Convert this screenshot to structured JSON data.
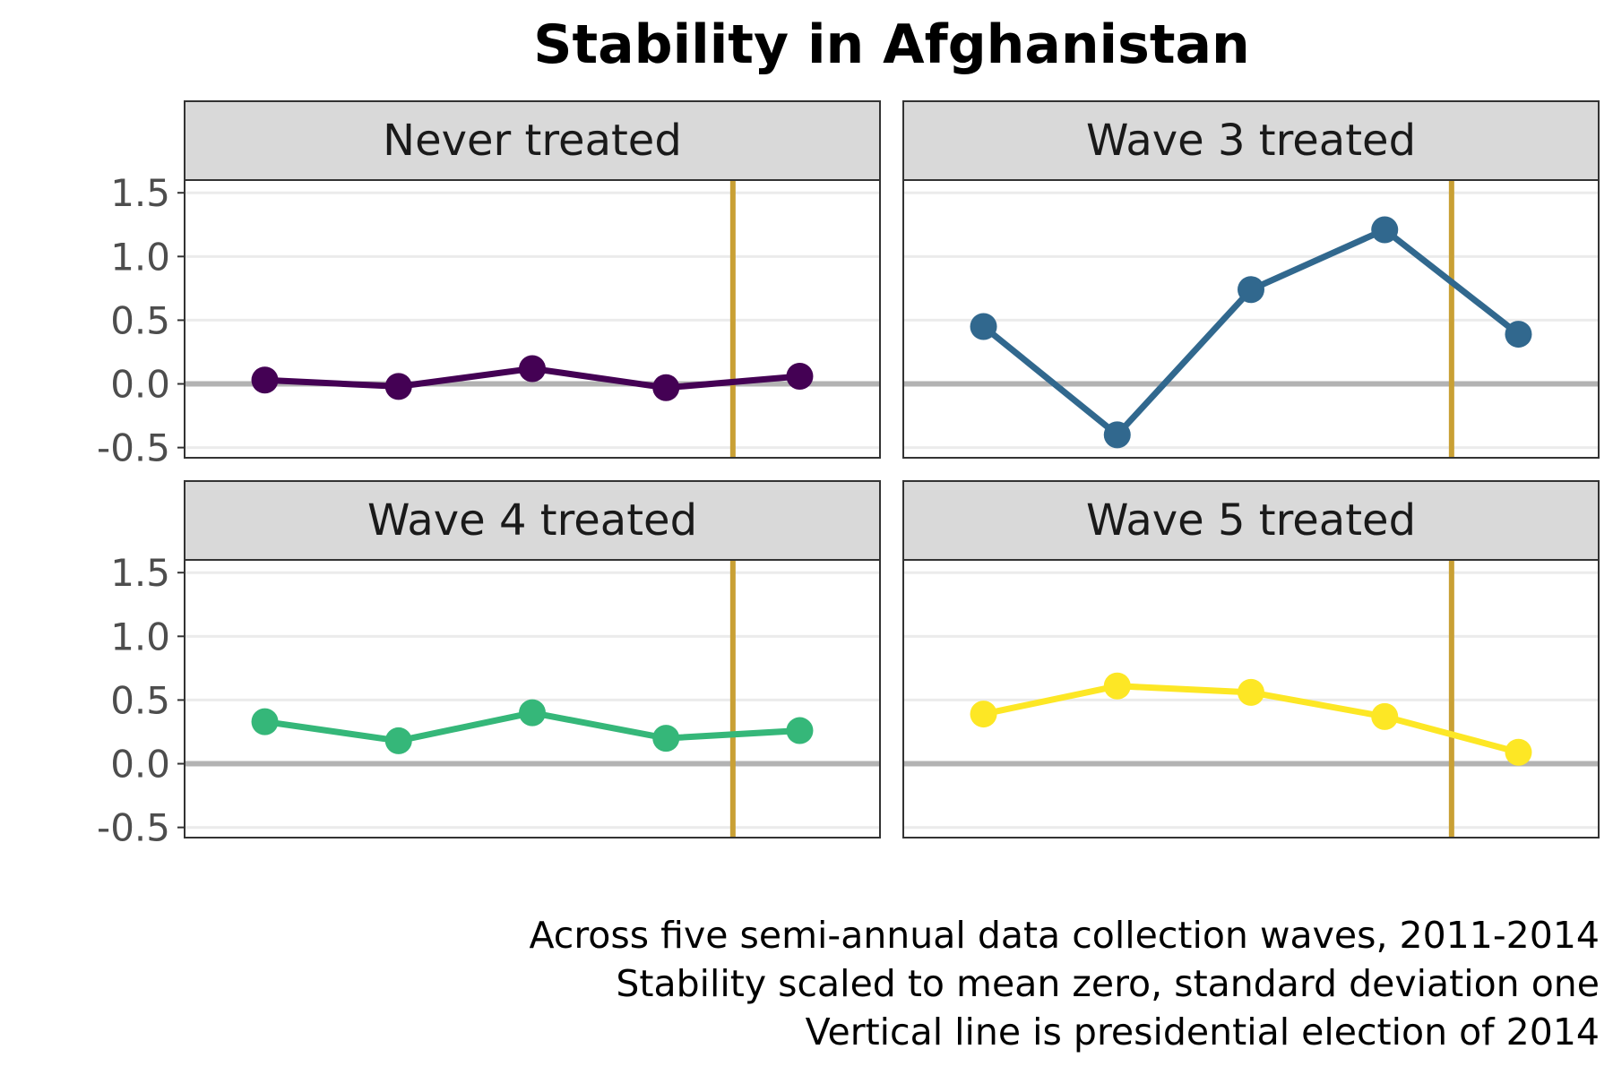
{
  "chart_data": {
    "type": "line",
    "title": "Stability in Afghanistan",
    "caption": [
      "Across five semi-annual data collection waves, 2011-2014",
      "Stability scaled to mean zero, standard deviation one",
      "Vertical line is presidential election of 2014"
    ],
    "x": [
      1,
      2,
      3,
      4,
      5
    ],
    "xlim": [
      0.4,
      5.6
    ],
    "ylim": [
      -0.58,
      1.6
    ],
    "yticks": [
      -0.5,
      0.0,
      0.5,
      1.0,
      1.5
    ],
    "ytick_labels": [
      "-0.5",
      "0.0",
      "0.5",
      "1.0",
      "1.5"
    ],
    "reference_hline": 0,
    "vline_x": 4.5,
    "vline_color": "#c9a034",
    "grid": true,
    "facets": [
      {
        "name": "Never treated",
        "color": "#440154",
        "values": [
          0.03,
          -0.02,
          0.12,
          -0.03,
          0.06
        ]
      },
      {
        "name": "Wave 3 treated",
        "color": "#31688e",
        "values": [
          0.45,
          -0.4,
          0.74,
          1.21,
          0.39
        ]
      },
      {
        "name": "Wave 4 treated",
        "color": "#35b779",
        "values": [
          0.33,
          0.18,
          0.4,
          0.2,
          0.26
        ]
      },
      {
        "name": "Wave 5 treated",
        "color": "#fde725",
        "values": [
          0.39,
          0.61,
          0.56,
          0.37,
          0.09
        ]
      }
    ]
  }
}
